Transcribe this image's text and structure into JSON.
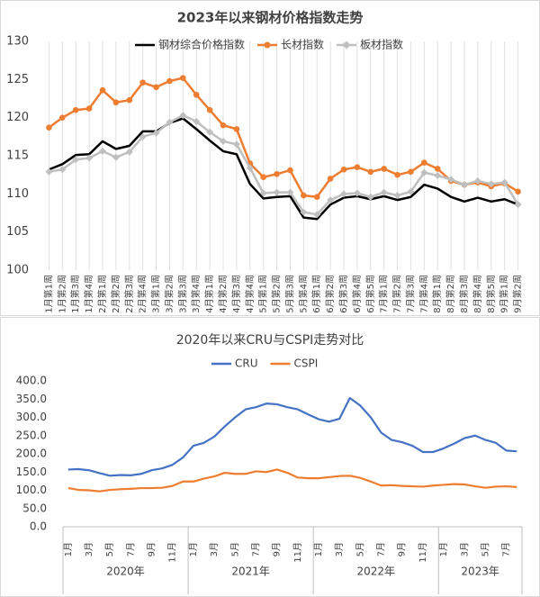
{
  "chart_data": [
    {
      "type": "line",
      "title": "2023年以来钢材价格指数走势",
      "categories": [
        "1月第1周",
        "1月第2周",
        "1月第3周",
        "1月第4周",
        "2月第1周",
        "2月第2周",
        "2月第3周",
        "2月第4周",
        "3月第1周",
        "3月第2周",
        "3月第3周",
        "3月第4周",
        "4月第1周",
        "4月第2周",
        "4月第3周",
        "4月第4周",
        "5月第1周",
        "5月第2周",
        "5月第3周",
        "5月第4周",
        "6月第1周",
        "6月第2周",
        "6月第3周",
        "6月第4周",
        "6月第5周",
        "7月第1周",
        "7月第2周",
        "7月第3周",
        "7月第4周",
        "8月第1周",
        "8月第2周",
        "8月第3周",
        "8月第4周",
        "8月第5周",
        "9月第1周",
        "9月第2周"
      ],
      "series": [
        {
          "name": "钢材综合价格指数",
          "color": "#000000",
          "marker": "none",
          "values": [
            113.2,
            113.9,
            115.1,
            115.2,
            116.9,
            115.9,
            116.3,
            118.2,
            118.2,
            119.3,
            119.9,
            118.5,
            117,
            115.6,
            115.2,
            111.3,
            109.4,
            109.6,
            109.7,
            106.9,
            106.7,
            108.6,
            109.5,
            109.7,
            109.3,
            109.7,
            109.2,
            109.6,
            111.2,
            110.7,
            109.6,
            109,
            109.5,
            109,
            109.3,
            108.6
          ]
        },
        {
          "name": "长材指数",
          "color": "#ed7d31",
          "marker": "circle",
          "values": [
            118.7,
            120,
            121,
            121.2,
            123.6,
            122,
            122.3,
            124.6,
            124,
            124.8,
            125.2,
            123,
            121,
            119,
            118.5,
            114,
            112.2,
            112.6,
            113.1,
            109.8,
            109.6,
            112,
            113.2,
            113.5,
            112.9,
            113.3,
            112.5,
            112.9,
            114.1,
            113.3,
            111.7,
            111.2,
            111.5,
            111,
            111.4,
            110.3
          ]
        },
        {
          "name": "板材指数",
          "color": "#bfbfbf",
          "marker": "diamond",
          "values": [
            112.9,
            113.2,
            114.5,
            114.7,
            115.6,
            114.8,
            115.5,
            117.5,
            118,
            119.4,
            120.3,
            119.5,
            118.1,
            116.9,
            116.5,
            113.4,
            110.1,
            110.2,
            110.2,
            107.6,
            107.3,
            109.2,
            110,
            110.1,
            109.6,
            110.2,
            109.8,
            110.3,
            112.8,
            112.4,
            111.9,
            111.2,
            111.7,
            111.3,
            111.5,
            108.6
          ]
        }
      ],
      "ylim": [
        100,
        130
      ],
      "yticks": [
        100,
        105,
        110,
        115,
        120,
        125,
        130
      ],
      "grid": "x",
      "legend": "top"
    },
    {
      "type": "line",
      "title": "2020年以来CRU与CSPI走势对比",
      "categories": [
        "1月",
        null,
        "3月",
        null,
        "5月",
        null,
        "7月",
        null,
        "9月",
        null,
        "11月",
        null,
        "1月",
        null,
        "3月",
        null,
        "5月",
        null,
        "7月",
        null,
        "9月",
        null,
        "11月",
        null,
        "1月",
        null,
        "3月",
        null,
        "5月",
        null,
        "7月",
        null,
        "9月",
        null,
        "11月",
        null,
        "1月",
        null,
        "3月",
        null,
        "5月",
        null,
        "7月",
        null
      ],
      "groups": [
        "2020年",
        "2021年",
        "2022年",
        "2023年"
      ],
      "series": [
        {
          "name": "CRU",
          "color": "#4472c4",
          "marker": "none",
          "values": [
            157,
            158,
            155,
            147,
            140,
            142,
            141,
            145,
            155,
            160,
            170,
            190,
            222,
            230,
            247,
            275,
            300,
            322,
            328,
            338,
            336,
            328,
            322,
            308,
            295,
            288,
            296,
            353,
            332,
            300,
            258,
            238,
            232,
            222,
            205,
            205,
            215,
            228,
            243,
            250,
            238,
            230,
            209,
            207
          ]
        },
        {
          "name": "CSPI",
          "color": "#ed7d31",
          "marker": "none",
          "values": [
            106,
            101,
            100,
            97,
            101,
            103,
            104,
            106,
            106,
            107,
            112,
            124,
            124,
            132,
            138,
            148,
            145,
            145,
            152,
            150,
            157,
            148,
            135,
            133,
            133,
            136,
            139,
            140,
            134,
            124,
            113,
            114,
            112,
            111,
            110,
            113,
            115,
            117,
            116,
            111,
            107,
            110,
            111,
            109
          ]
        }
      ],
      "ylim": [
        0,
        400
      ],
      "yticks": [
        {
          "value": 0,
          "label": "0.0"
        },
        {
          "value": 50,
          "label": "50.0"
        },
        {
          "value": 100,
          "label": "100.0"
        },
        {
          "value": 150,
          "label": "150.0"
        },
        {
          "value": 200,
          "label": "200.0"
        },
        {
          "value": 250,
          "label": "250.0"
        },
        {
          "value": 300,
          "label": "300.0"
        },
        {
          "value": 350,
          "label": "350.0"
        },
        {
          "value": 400,
          "label": "400.0"
        }
      ],
      "grid": false,
      "legend": "top"
    }
  ]
}
